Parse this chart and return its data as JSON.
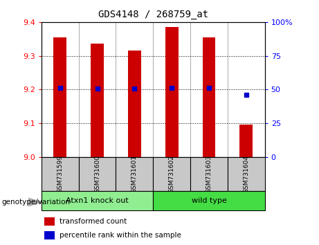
{
  "title": "GDS4148 / 268759_at",
  "samples": [
    "GSM731599",
    "GSM731600",
    "GSM731601",
    "GSM731602",
    "GSM731603",
    "GSM731604"
  ],
  "red_values": [
    9.355,
    9.335,
    9.315,
    9.385,
    9.355,
    9.095
  ],
  "blue_values": [
    9.205,
    9.203,
    9.202,
    9.204,
    9.205,
    9.185
  ],
  "ylim_left": [
    9.0,
    9.4
  ],
  "ylim_right": [
    0,
    100
  ],
  "yticks_left": [
    9.0,
    9.1,
    9.2,
    9.3,
    9.4
  ],
  "yticks_right": [
    0,
    25,
    50,
    75,
    100
  ],
  "grid_values": [
    9.1,
    9.2,
    9.3
  ],
  "bar_color": "#cc0000",
  "dot_color": "#0000cc",
  "bar_width": 0.35,
  "groups": [
    {
      "label": "Atxn1 knock out",
      "samples": [
        0,
        1,
        2
      ],
      "color": "#90ee90"
    },
    {
      "label": "wild type",
      "samples": [
        3,
        4,
        5
      ],
      "color": "#44dd44"
    }
  ],
  "group_label": "genotype/variation",
  "legend_items": [
    {
      "label": "transformed count",
      "color": "#cc0000"
    },
    {
      "label": "percentile rank within the sample",
      "color": "#0000cc"
    }
  ],
  "sample_box_color": "#c8c8c8",
  "plot_bg_color": "#ffffff"
}
